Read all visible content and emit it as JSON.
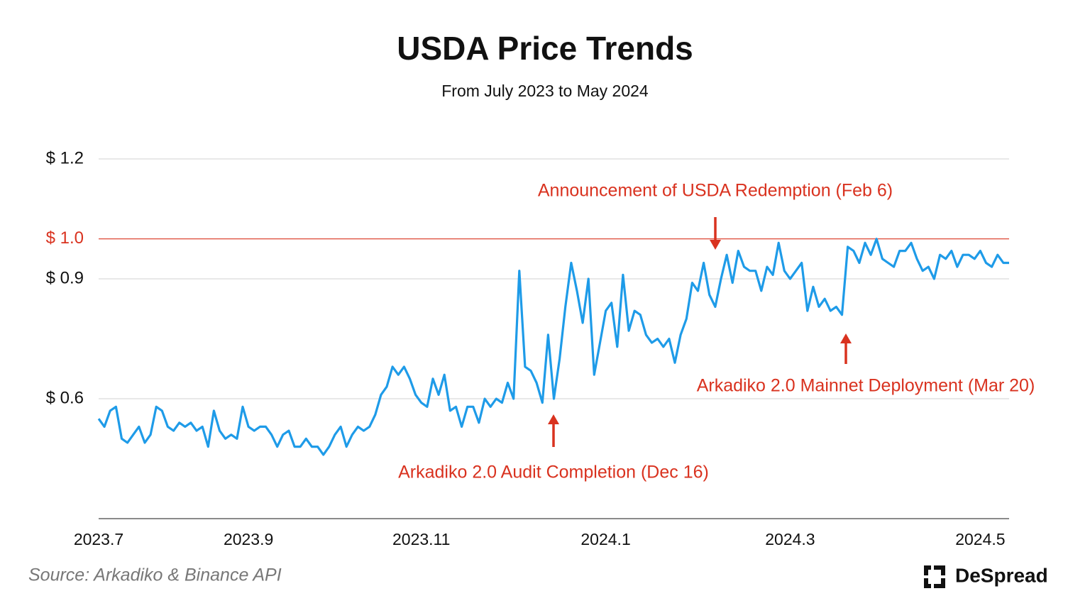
{
  "chart_data": {
    "type": "line",
    "title": "USDA Price Trends",
    "subtitle": "From July 2023 to May 2024",
    "source": "Source: Arkadiko & Binance API",
    "brand": "DeSpread",
    "ylim": [
      0.3,
      1.2
    ],
    "yticks": [
      {
        "value": 0.6,
        "label": "$ 0.6"
      },
      {
        "value": 0.9,
        "label": "$ 0.9"
      },
      {
        "value": 1.0,
        "label": "$ 1.0"
      },
      {
        "value": 1.2,
        "label": "$ 1.2"
      }
    ],
    "ytick_label_colors": [
      "#111111",
      "#111111",
      "#d9321f",
      "#111111"
    ],
    "grid": true,
    "grid_colors": [
      "#d9d9d9",
      "#d9d9d9",
      "#d9321f",
      "#d9d9d9"
    ],
    "categories": [
      "2023.7",
      null,
      null,
      null,
      null,
      null,
      null,
      null,
      null,
      null,
      null,
      null,
      null,
      null,
      null,
      null,
      null,
      null,
      null,
      null,
      null,
      null,
      null,
      null,
      null,
      null,
      "2023.9",
      null,
      null,
      null,
      null,
      null,
      null,
      null,
      null,
      null,
      null,
      null,
      null,
      null,
      null,
      null,
      null,
      null,
      null,
      null,
      null,
      null,
      null,
      null,
      null,
      null,
      null,
      null,
      null,
      null,
      "2023.11",
      null,
      null,
      null,
      null,
      null,
      null,
      null,
      null,
      null,
      null,
      null,
      null,
      null,
      null,
      null,
      null,
      null,
      null,
      null,
      null,
      null,
      null,
      null,
      null,
      null,
      null,
      null,
      null,
      null,
      null,
      null,
      "2024.1",
      null,
      null,
      null,
      null,
      null,
      null,
      null,
      null,
      null,
      null,
      null,
      null,
      null,
      null,
      null,
      null,
      null,
      null,
      null,
      null,
      null,
      null,
      null,
      null,
      null,
      null,
      null,
      null,
      null,
      null,
      null,
      "2024.3",
      null,
      null,
      null,
      null,
      null,
      null,
      null,
      null,
      null,
      null,
      null,
      null,
      null,
      null,
      null,
      null,
      null,
      null,
      null,
      null,
      null,
      null,
      null,
      null,
      null,
      null,
      null,
      null,
      null,
      null,
      null,
      null,
      "2024.5",
      null,
      null,
      null,
      null,
      null
    ],
    "series": [
      {
        "name": "USDA",
        "color": "#1e9be8",
        "values": [
          0.55,
          0.53,
          0.57,
          0.58,
          0.5,
          0.49,
          0.51,
          0.53,
          0.49,
          0.51,
          0.58,
          0.57,
          0.53,
          0.52,
          0.54,
          0.53,
          0.54,
          0.52,
          0.53,
          0.48,
          0.57,
          0.52,
          0.5,
          0.51,
          0.5,
          0.58,
          0.53,
          0.52,
          0.53,
          0.53,
          0.51,
          0.48,
          0.51,
          0.52,
          0.48,
          0.48,
          0.5,
          0.48,
          0.48,
          0.46,
          0.48,
          0.51,
          0.53,
          0.48,
          0.51,
          0.53,
          0.52,
          0.53,
          0.56,
          0.61,
          0.63,
          0.68,
          0.66,
          0.68,
          0.65,
          0.61,
          0.59,
          0.58,
          0.65,
          0.61,
          0.66,
          0.57,
          0.58,
          0.53,
          0.58,
          0.58,
          0.54,
          0.6,
          0.58,
          0.6,
          0.59,
          0.64,
          0.6,
          0.92,
          0.68,
          0.67,
          0.64,
          0.59,
          0.76,
          0.6,
          0.7,
          0.83,
          0.94,
          0.87,
          0.79,
          0.9,
          0.66,
          0.74,
          0.82,
          0.84,
          0.73,
          0.91,
          0.77,
          0.82,
          0.81,
          0.76,
          0.74,
          0.75,
          0.73,
          0.75,
          0.69,
          0.76,
          0.8,
          0.89,
          0.87,
          0.94,
          0.86,
          0.83,
          0.9,
          0.96,
          0.89,
          0.97,
          0.93,
          0.92,
          0.92,
          0.87,
          0.93,
          0.91,
          0.99,
          0.92,
          0.9,
          0.92,
          0.94,
          0.82,
          0.88,
          0.83,
          0.85,
          0.82,
          0.83,
          0.81,
          0.98,
          0.97,
          0.94,
          0.99,
          0.96,
          1.0,
          0.95,
          0.94,
          0.93,
          0.97,
          0.97,
          0.99,
          0.95,
          0.92,
          0.93,
          0.9,
          0.96,
          0.95,
          0.97,
          0.93,
          0.96,
          0.96,
          0.95,
          0.97,
          0.94,
          0.93,
          0.96,
          0.94,
          0.94
        ]
      }
    ],
    "annotations": [
      {
        "text": "Announcement of USDA Redemption (Feb 6)",
        "color": "#d9321f"
      },
      {
        "text": "Arkadiko 2.0 Audit Completion (Dec 16)",
        "color": "#d9321f"
      },
      {
        "text": "Arkadiko 2.0 Mainnet Deployment (Mar 20)",
        "color": "#d9321f"
      }
    ]
  }
}
